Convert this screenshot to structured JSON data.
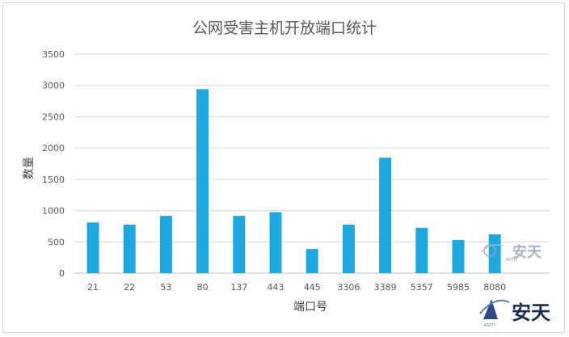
{
  "chart_data": {
    "type": "bar",
    "title": "公网受害主机开放端口统计",
    "xlabel": "端口号",
    "ylabel": "数量",
    "categories": [
      "21",
      "22",
      "53",
      "80",
      "137",
      "443",
      "445",
      "3306",
      "3389",
      "5357",
      "5985",
      "8080"
    ],
    "series": [
      {
        "values": [
          810,
          775,
          915,
          2940,
          915,
          975,
          385,
          775,
          1845,
          725,
          530,
          620
        ]
      }
    ],
    "ylim": [
      0,
      3500
    ],
    "yticks": [
      0,
      500,
      1000,
      1500,
      2000,
      2500,
      3000,
      3500
    ],
    "grid": true,
    "bar_color": "#1ea8e0"
  },
  "watermarks": [
    {
      "text": "安天",
      "sub": "ANTIY"
    },
    {
      "text": "安天",
      "sub": "ANTIY"
    }
  ]
}
